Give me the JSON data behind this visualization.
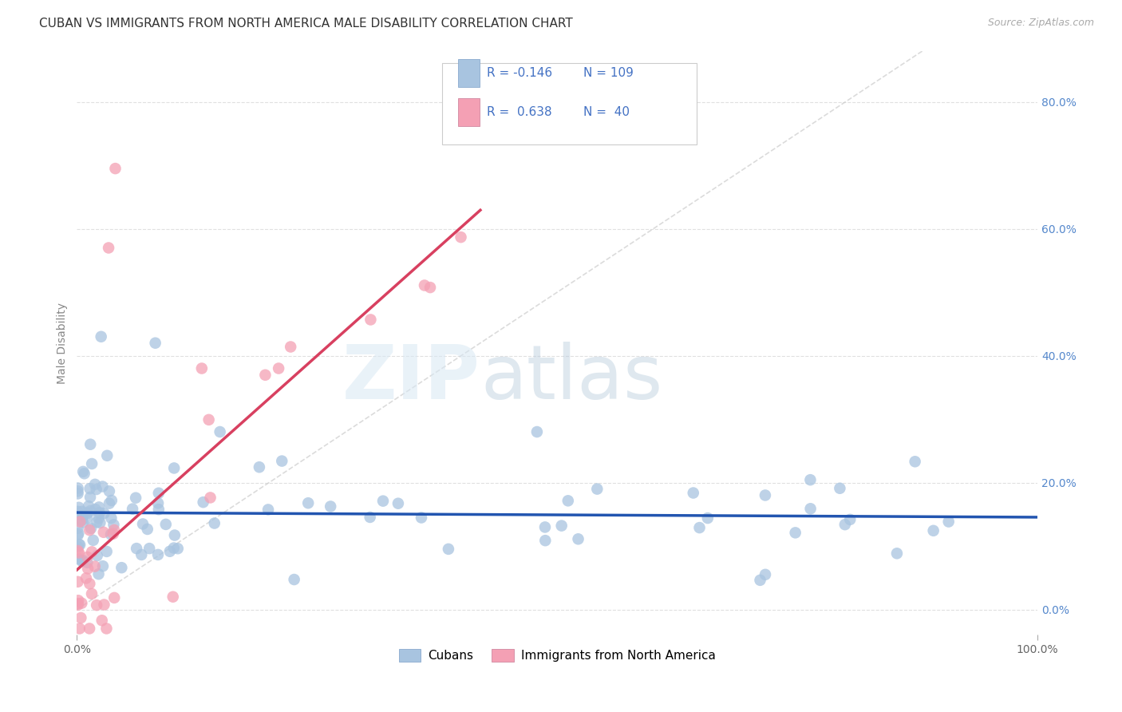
{
  "title": "CUBAN VS IMMIGRANTS FROM NORTH AMERICA MALE DISABILITY CORRELATION CHART",
  "source": "Source: ZipAtlas.com",
  "ylabel": "Male Disability",
  "right_yticks": [
    "0.0%",
    "20.0%",
    "40.0%",
    "60.0%",
    "80.0%"
  ],
  "right_ytick_vals": [
    0.0,
    0.2,
    0.4,
    0.6,
    0.8
  ],
  "legend_label1": "Cubans",
  "legend_label2": "Immigrants from North America",
  "R1": -0.146,
  "N1": 109,
  "R2": 0.638,
  "N2": 40,
  "color_blue": "#a8c4e0",
  "color_pink": "#f4a0b4",
  "line_color_blue": "#2255b0",
  "line_color_pink": "#d84060",
  "diag_line_color": "#cccccc",
  "watermark_zip": "ZIP",
  "watermark_atlas": "atlas",
  "background_color": "#ffffff",
  "title_fontsize": 11,
  "source_fontsize": 9,
  "ylim_min": -0.04,
  "ylim_max": 0.88,
  "xlim_min": 0.0,
  "xlim_max": 1.0
}
